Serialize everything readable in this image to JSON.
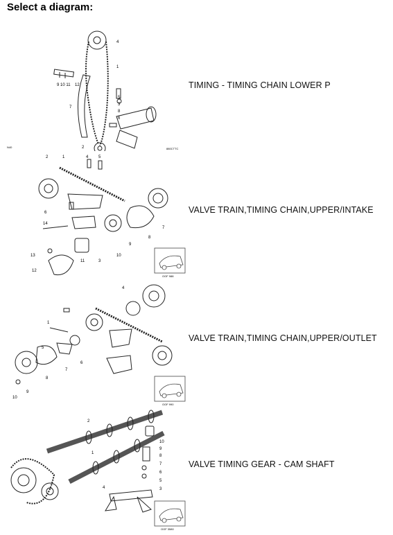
{
  "page": {
    "title": "Select a diagram:"
  },
  "diagrams": [
    {
      "label": "TIMING - TIMING CHAIN LOWER P",
      "code": "880CTTC",
      "corner": "N40"
    },
    {
      "label": "VALVE TRAIN,TIMING CHAIN,UPPER/INTAKE",
      "code": "OOF 988"
    },
    {
      "label": "VALVE TRAIN,TIMING CHAIN,UPPER/OUTLET",
      "code": "OOF 990"
    },
    {
      "label": "VALVE TIMING GEAR - CAM SHAFT",
      "code": "OOF 3580"
    }
  ]
}
